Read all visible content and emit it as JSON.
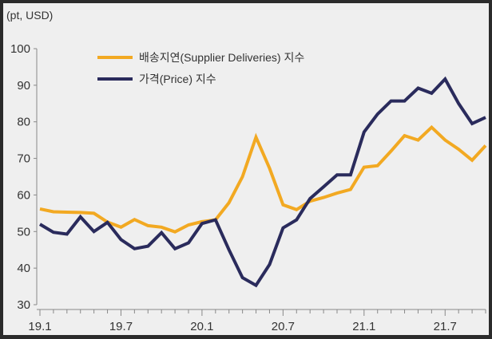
{
  "chart_data": {
    "type": "line",
    "unit_label": "(pt, USD)",
    "ylim": [
      30,
      100
    ],
    "yticks": [
      30,
      40,
      50,
      60,
      70,
      80,
      90,
      100
    ],
    "x_tick_labels": [
      "19.1",
      "19.7",
      "20.1",
      "20.7",
      "21.1",
      "21.7"
    ],
    "x": [
      "19.1",
      "19.2",
      "19.3",
      "19.4",
      "19.5",
      "19.6",
      "19.7",
      "19.8",
      "19.9",
      "19.10",
      "19.11",
      "19.12",
      "20.1",
      "20.2",
      "20.3",
      "20.4",
      "20.5",
      "20.6",
      "20.7",
      "20.8",
      "20.9",
      "20.10",
      "20.11",
      "20.12",
      "21.1",
      "21.2",
      "21.3",
      "21.4",
      "21.5",
      "21.6",
      "21.7",
      "21.8",
      "21.9",
      "21.10"
    ],
    "grid": false,
    "legend_position": "top-left",
    "series": [
      {
        "name": "배송지연(Supplier Deliveries) 지수",
        "color": "#f2a922",
        "values": [
          56.2,
          55.4,
          55.3,
          55.2,
          55.0,
          52.6,
          51.2,
          53.3,
          51.6,
          51.2,
          49.9,
          51.8,
          52.7,
          53.2,
          57.9,
          65.0,
          75.8,
          67.3,
          57.3,
          56.0,
          58.3,
          59.3,
          60.5,
          61.5,
          67.6,
          68.0,
          72.0,
          76.2,
          75.0,
          78.5,
          75.0,
          72.5,
          69.5,
          73.5
        ]
      },
      {
        "name": "가격(Price) 지수",
        "color": "#2a2b5c",
        "values": [
          52.0,
          49.8,
          49.3,
          54.0,
          50.0,
          52.5,
          47.8,
          45.3,
          46.0,
          49.7,
          45.3,
          46.9,
          52.2,
          53.2,
          45.0,
          37.4,
          35.3,
          41.0,
          51.0,
          53.2,
          59.0,
          62.2,
          65.5,
          65.5,
          77.2,
          82.1,
          85.7,
          85.7,
          89.2,
          87.8,
          91.7,
          85.0,
          79.5,
          81.2
        ]
      }
    ]
  }
}
